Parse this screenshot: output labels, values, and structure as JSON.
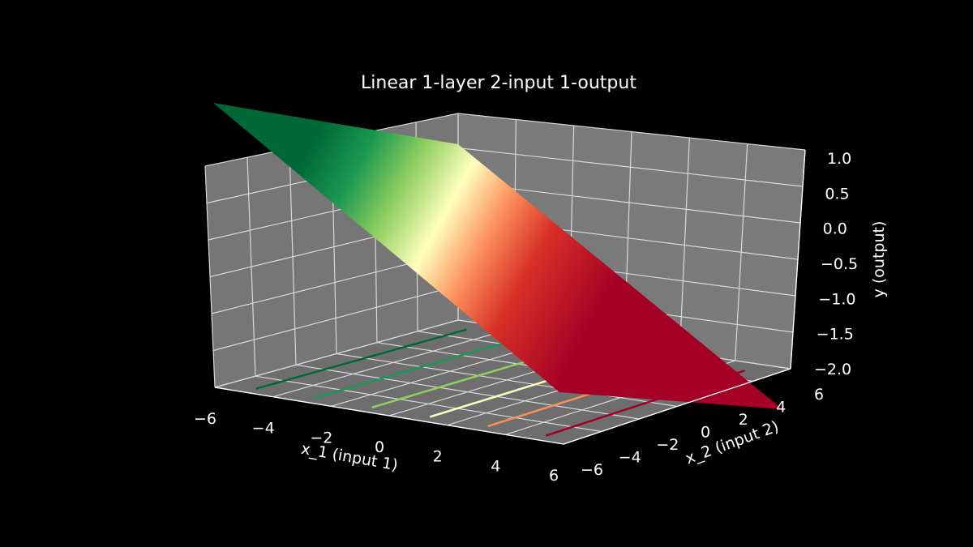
{
  "chart_data": {
    "type": "surface3d",
    "title": "Linear 1-layer 2-input 1-output",
    "xlabel": "x_1 (input 1)",
    "ylabel": "x_2 (input 2)",
    "zlabel": "y (output)",
    "x_ticks": [
      "−6",
      "−4",
      "−2",
      "0",
      "2",
      "4",
      "6"
    ],
    "y_ticks": [
      "−6",
      "−4",
      "−2",
      "0",
      "2",
      "4",
      "6"
    ],
    "z_ticks": [
      "1.0",
      "0.5",
      "0.0",
      "−0.5",
      "−1.0",
      "−1.5",
      "−2.0"
    ],
    "xlim": [
      -6,
      6
    ],
    "ylim": [
      -6,
      6
    ],
    "zlim": [
      -2.0,
      1.0
    ],
    "surface": {
      "equation": "y = tanh(-0.25*x_1) approx; plane sloping down along x_1",
      "corners": [
        {
          "x_1": -6,
          "x_2": -6,
          "y": 1.0
        },
        {
          "x_1": -6,
          "x_2": 6,
          "y": 1.0
        },
        {
          "x_1": 6,
          "x_2": -6,
          "y": -2.0
        },
        {
          "x_1": 6,
          "x_2": 6,
          "y": -2.0
        }
      ],
      "colormap": "RdYlGn"
    },
    "contours_on_floor": [
      -5,
      -3,
      -1,
      1,
      3,
      5
    ],
    "grid": true,
    "pane_color": "#767676",
    "background": "#000000"
  }
}
